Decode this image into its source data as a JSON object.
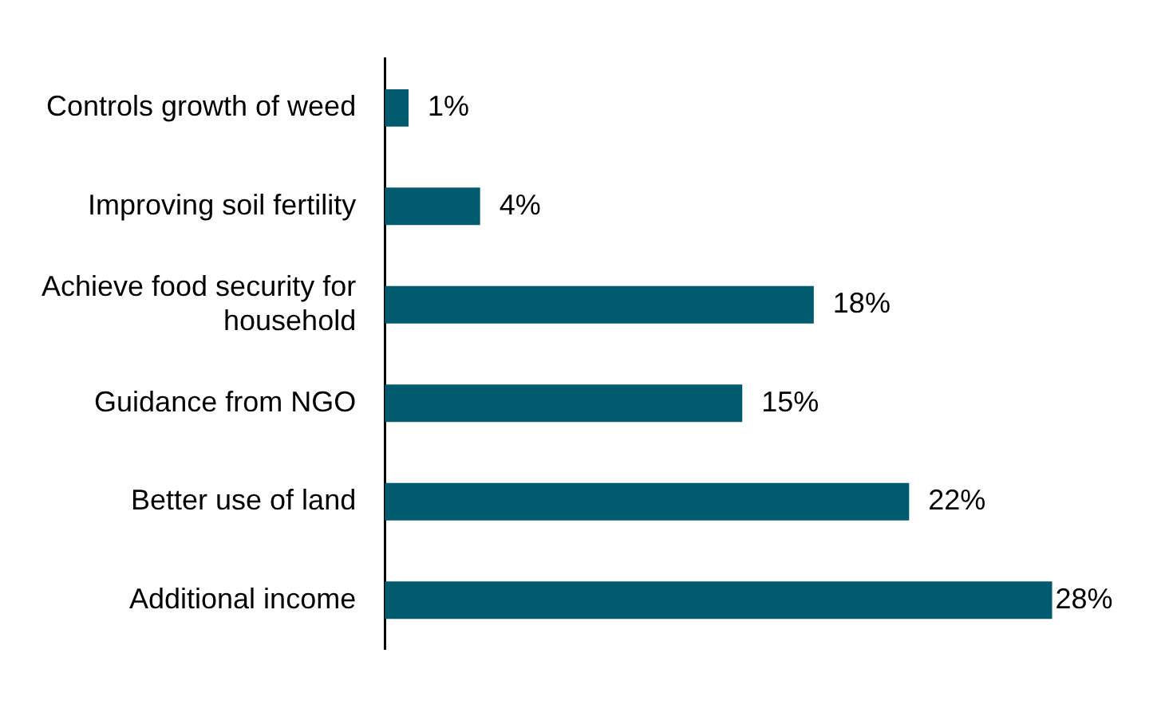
{
  "chart_data": {
    "type": "bar",
    "orientation": "horizontal",
    "categories": [
      "Controls growth of weed",
      "Improving soil fertility",
      "Achieve food security for household",
      "Guidance from NGO",
      "Better use of land",
      "Additional income"
    ],
    "values": [
      1,
      4,
      18,
      15,
      22,
      28
    ],
    "value_labels": [
      "1%",
      "4%",
      "18%",
      "15%",
      "22%",
      "28%"
    ],
    "color": "#005b6e",
    "tick_labels": "y",
    "legend": false
  }
}
